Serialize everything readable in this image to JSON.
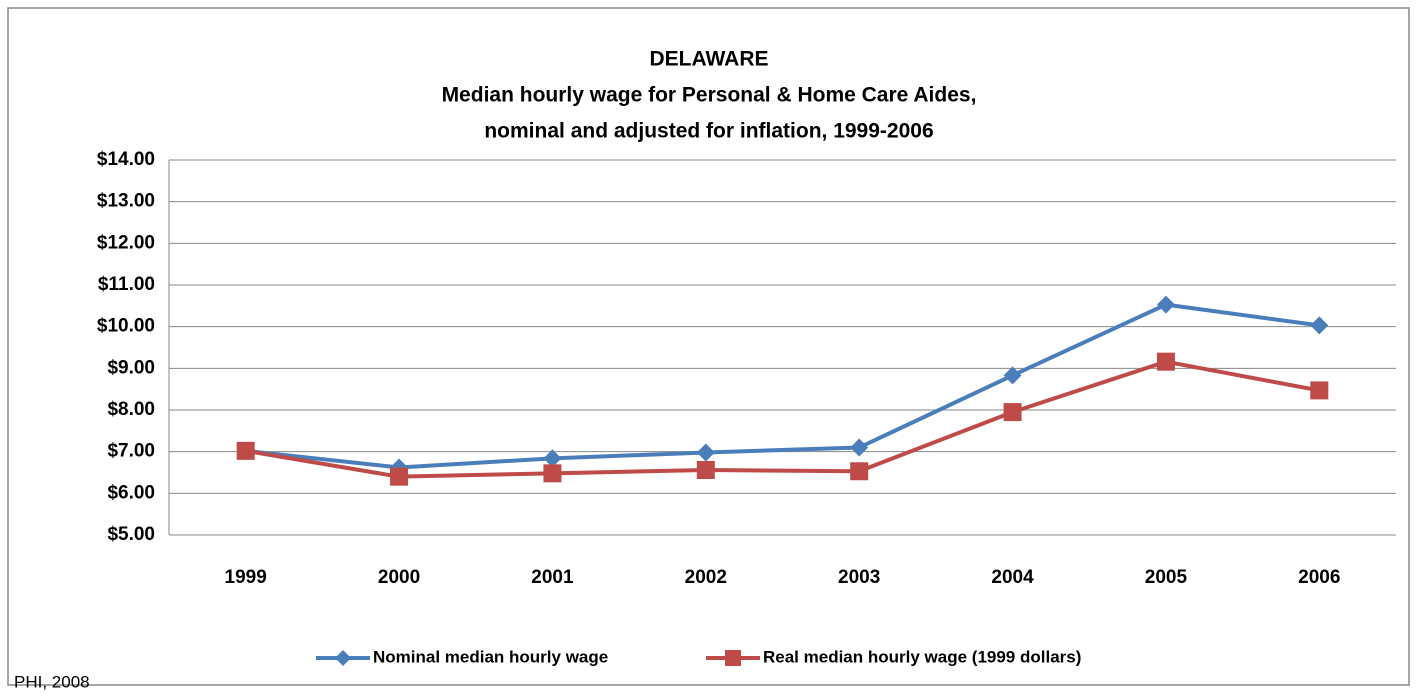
{
  "chart_data": {
    "type": "line",
    "title": "DELAWARE",
    "subtitle": [
      "Median hourly wage for Personal & Home Care Aides,",
      "nominal and adjusted for inflation, 1999-2006"
    ],
    "categories": [
      "1999",
      "2000",
      "2001",
      "2002",
      "2003",
      "2004",
      "2005",
      "2006"
    ],
    "series": [
      {
        "name": "Nominal median hourly wage",
        "color": "#4a7ebb",
        "marker": "diamond",
        "values": [
          7.02,
          6.62,
          6.84,
          6.98,
          7.1,
          8.83,
          10.53,
          10.03
        ]
      },
      {
        "name": "Real median hourly wage (1999 dollars)",
        "color": "#be4b48",
        "marker": "square",
        "values": [
          7.02,
          6.4,
          6.48,
          6.56,
          6.53,
          7.95,
          9.16,
          8.47
        ]
      }
    ],
    "ylim": [
      5,
      14
    ],
    "yticks": [
      {
        "value": 5,
        "label": "$5.00"
      },
      {
        "value": 6,
        "label": "$6.00"
      },
      {
        "value": 7,
        "label": "$7.00"
      },
      {
        "value": 8,
        "label": "$8.00"
      },
      {
        "value": 9,
        "label": "$9.00"
      },
      {
        "value": 10,
        "label": "$10.00"
      },
      {
        "value": 11,
        "label": "$11.00"
      },
      {
        "value": 12,
        "label": "$12.00"
      },
      {
        "value": 13,
        "label": "$13.00"
      },
      {
        "value": 14,
        "label": "$14.00"
      }
    ],
    "grid": true,
    "legend": "bottom",
    "source": "PHI, 2008"
  }
}
